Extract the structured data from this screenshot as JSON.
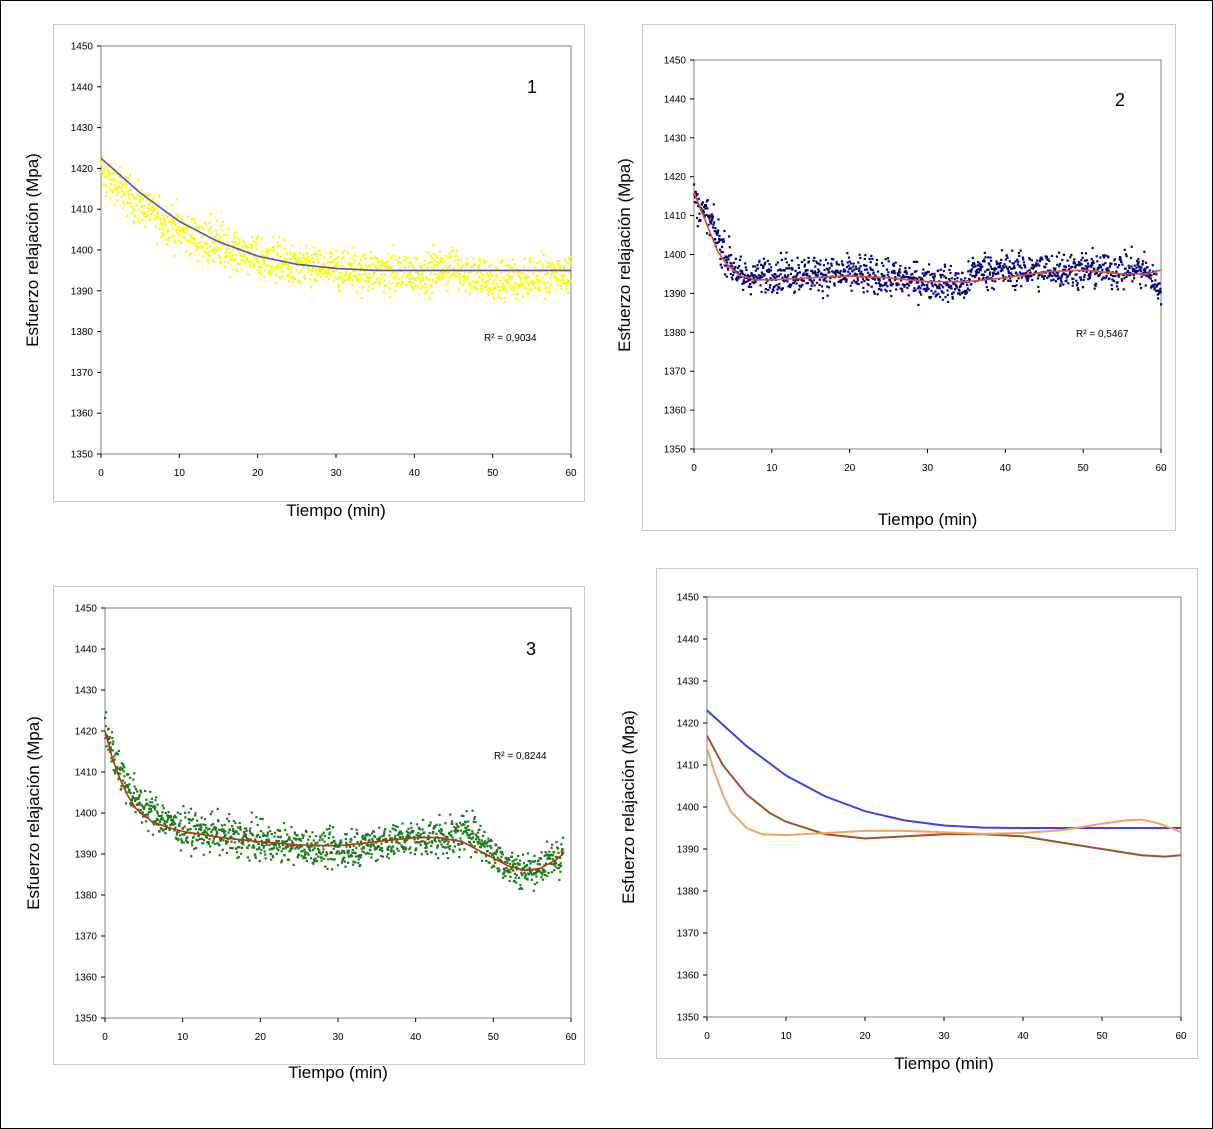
{
  "chart_data": [
    {
      "type": "scatter",
      "panel_label": "1",
      "xlabel": "Tiempo (min)",
      "ylabel": "Esfuerzo relajación (Mpa)",
      "xlim": [
        0,
        60
      ],
      "ylim": [
        1350,
        1450
      ],
      "xticks": [
        0,
        10,
        20,
        30,
        40,
        50,
        60
      ],
      "yticks": [
        1350,
        1360,
        1370,
        1380,
        1390,
        1400,
        1410,
        1420,
        1430,
        1440,
        1450
      ],
      "r2_label": "R² = 0,9034",
      "series": [
        {
          "color": "#ffff00",
          "kind": "scatter",
          "trend": [
            [
              0,
              1419
            ],
            [
              5,
              1411
            ],
            [
              10,
              1405
            ],
            [
              15,
              1401
            ],
            [
              20,
              1398
            ],
            [
              25,
              1396
            ],
            [
              30,
              1395
            ],
            [
              35,
              1395
            ],
            [
              40,
              1394
            ],
            [
              45,
              1396
            ],
            [
              50,
              1392
            ],
            [
              55,
              1393
            ],
            [
              60,
              1395
            ]
          ],
          "noise": 4.5
        },
        {
          "color": "#5050d0",
          "kind": "fit",
          "x": [
            0,
            5,
            10,
            15,
            20,
            25,
            30,
            35,
            40,
            45,
            50,
            55,
            60
          ],
          "y": [
            1422.5,
            1414,
            1407,
            1402,
            1398.5,
            1396.5,
            1395.5,
            1395,
            1395,
            1395,
            1395,
            1395,
            1395
          ]
        }
      ]
    },
    {
      "type": "scatter",
      "panel_label": "2",
      "xlabel": "Tiempo (min)",
      "ylabel": "Esfuerzo relajación (Mpa)",
      "xlim": [
        0,
        60
      ],
      "ylim": [
        1350,
        1450
      ],
      "xticks": [
        0,
        10,
        20,
        30,
        40,
        50,
        60
      ],
      "yticks": [
        1350,
        1360,
        1370,
        1380,
        1390,
        1400,
        1410,
        1420,
        1430,
        1440,
        1450
      ],
      "r2_label": "R² = 0,5467",
      "series": [
        {
          "color": "#000080",
          "kind": "scatter",
          "trend": [
            [
              0,
              1414
            ],
            [
              2,
              1409
            ],
            [
              4,
              1400
            ],
            [
              6,
              1394
            ],
            [
              10,
              1395
            ],
            [
              20,
              1395
            ],
            [
              30,
              1393
            ],
            [
              35,
              1392
            ],
            [
              36,
              1396
            ],
            [
              40,
              1396
            ],
            [
              50,
              1396
            ],
            [
              58,
              1396
            ],
            [
              60,
              1391
            ]
          ],
          "noise": 4
        },
        {
          "color": "#e05020",
          "kind": "fit",
          "x": [
            0,
            1,
            2,
            3,
            4,
            5,
            6,
            8,
            10,
            15,
            20,
            25,
            30,
            35,
            40,
            45,
            50,
            55,
            58,
            60
          ],
          "y": [
            1416,
            1411,
            1406,
            1401,
            1398,
            1396,
            1394.5,
            1393.5,
            1393.5,
            1394,
            1394.5,
            1394,
            1393,
            1393,
            1394,
            1395.5,
            1396,
            1395,
            1395,
            1396
          ]
        }
      ]
    },
    {
      "type": "scatter",
      "panel_label": "3",
      "xlabel": "Tiempo (min)",
      "ylabel": "Esfuerzo relajación (Mpa)",
      "xlim": [
        0,
        60
      ],
      "ylim": [
        1350,
        1450
      ],
      "xticks": [
        0,
        10,
        20,
        30,
        40,
        50,
        60
      ],
      "yticks": [
        1350,
        1360,
        1370,
        1380,
        1390,
        1400,
        1410,
        1420,
        1430,
        1440,
        1450
      ],
      "r2_label": "R² = 0,8244",
      "series": [
        {
          "color": "#1a7a1a",
          "kind": "scatter",
          "trend": [
            [
              0,
              1420
            ],
            [
              2,
              1410
            ],
            [
              4,
              1403
            ],
            [
              6,
              1400
            ],
            [
              10,
              1396
            ],
            [
              20,
              1393
            ],
            [
              30,
              1391
            ],
            [
              33,
              1392
            ],
            [
              36,
              1393
            ],
            [
              40,
              1394
            ],
            [
              45,
              1394
            ],
            [
              47,
              1396
            ],
            [
              50,
              1390
            ],
            [
              53,
              1386
            ],
            [
              55,
              1386
            ],
            [
              58,
              1389
            ],
            [
              59,
              1390
            ]
          ],
          "noise": 4
        },
        {
          "color": "#c03010",
          "kind": "fit",
          "x": [
            0,
            1,
            2,
            3,
            4,
            6,
            8,
            10,
            15,
            20,
            25,
            30,
            35,
            40,
            43,
            46,
            48,
            50,
            52,
            54,
            56,
            58,
            59
          ],
          "y": [
            1420,
            1413,
            1408,
            1404,
            1401,
            1398,
            1396.5,
            1395.5,
            1394,
            1393,
            1392.2,
            1392,
            1393,
            1394,
            1394,
            1393,
            1391,
            1389,
            1387,
            1386,
            1386.5,
            1388.5,
            1390
          ]
        }
      ]
    },
    {
      "type": "line",
      "panel_label": "",
      "xlabel": "Tiempo (min)",
      "ylabel": "Esfuerzo relajación (Mpa)",
      "xlim": [
        0,
        60
      ],
      "ylim": [
        1350,
        1450
      ],
      "xticks": [
        0,
        10,
        20,
        30,
        40,
        50,
        60
      ],
      "yticks": [
        1350,
        1360,
        1370,
        1380,
        1390,
        1400,
        1410,
        1420,
        1430,
        1440,
        1450
      ],
      "series": [
        {
          "color": "#4040ee",
          "kind": "fit",
          "x": [
            0,
            5,
            10,
            15,
            20,
            25,
            30,
            35,
            40,
            45,
            50,
            55,
            60
          ],
          "y": [
            1423,
            1414.5,
            1407.5,
            1402.5,
            1399,
            1396.8,
            1395.6,
            1395.1,
            1395,
            1395,
            1395,
            1395,
            1395
          ]
        },
        {
          "color": "#a0522d",
          "kind": "fit",
          "x": [
            0,
            2,
            5,
            8,
            10,
            15,
            20,
            25,
            30,
            35,
            40,
            45,
            50,
            55,
            58,
            60
          ],
          "y": [
            1417,
            1410,
            1403,
            1398.5,
            1396.5,
            1393.5,
            1392.5,
            1393,
            1393.5,
            1393.5,
            1393,
            1391.5,
            1390,
            1388.5,
            1388.2,
            1388.5
          ]
        },
        {
          "color": "#f4a460",
          "kind": "fit",
          "x": [
            0,
            1,
            2,
            3,
            5,
            7,
            10,
            15,
            20,
            25,
            30,
            35,
            40,
            45,
            50,
            53,
            55,
            57,
            59,
            60
          ],
          "y": [
            1414,
            1408,
            1403,
            1399,
            1395,
            1393.5,
            1393.3,
            1393.8,
            1394.3,
            1394.3,
            1394,
            1393.6,
            1393.8,
            1394.5,
            1396,
            1396.8,
            1397,
            1396.2,
            1394.8,
            1394
          ]
        }
      ]
    }
  ]
}
